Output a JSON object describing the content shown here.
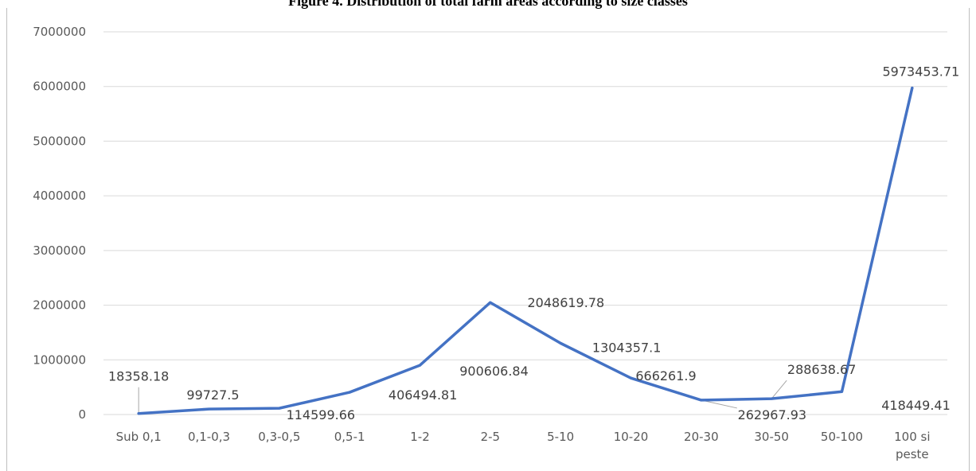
{
  "chart_data": {
    "type": "line",
    "title": "Figure 4. Distribution of total farm areas according to size classes",
    "xlabel": "",
    "ylabel": "",
    "categories": [
      "Sub 0,1",
      "0,1-0,3",
      "0,3-0,5",
      "0,5-1",
      "1-2",
      "2-5",
      "5-10",
      "10-20",
      "20-30",
      "30-50",
      "50-100",
      "100 si peste"
    ],
    "values": [
      18358.18,
      99727.5,
      114599.66,
      406494.81,
      900606.84,
      2048619.78,
      1304357.1,
      666261.9,
      262967.93,
      288638.67,
      418449.41,
      5973453.71
    ],
    "data_labels": [
      "18358.18",
      "99727.5",
      "114599.66",
      "406494.81",
      "900606.84",
      "2048619.78",
      "1304357.1",
      "666261.9",
      "262967.93",
      "288638.67",
      "418449.41",
      "5973453.71"
    ],
    "y_ticks": [
      "0",
      "1000000",
      "2000000",
      "3000000",
      "4000000",
      "5000000",
      "6000000",
      "7000000"
    ],
    "ylim": [
      0,
      7000000
    ],
    "grid": true,
    "legend": "none",
    "line_color": "#4472c4",
    "grid_color": "#d9d9d9"
  }
}
